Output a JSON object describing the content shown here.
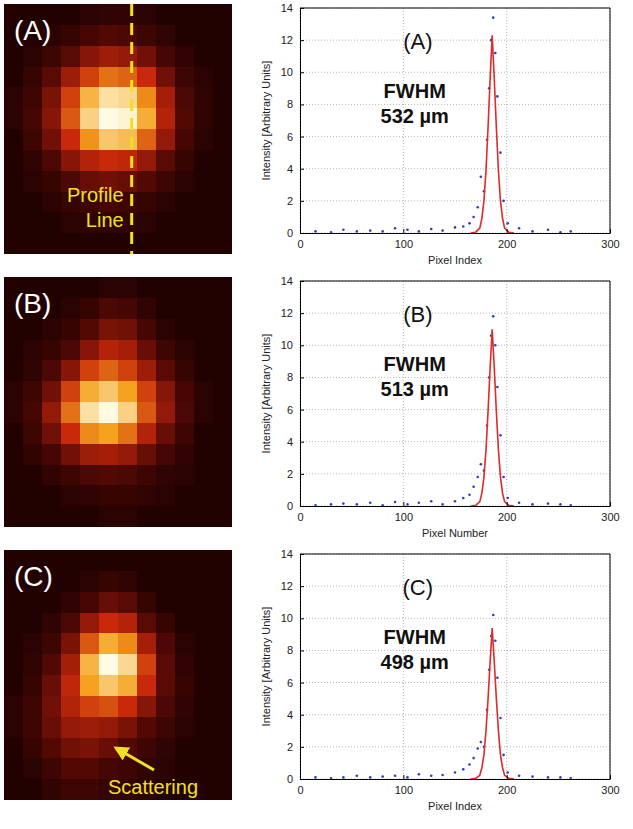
{
  "chart_data": [
    {
      "type": "heatmap",
      "panel_label": "(A)",
      "tick_labels": false,
      "zlim": [
        0,
        1
      ],
      "annotations": [
        {
          "text": "Profile Line",
          "line_style": "dashed",
          "color": "#f2e01e"
        }
      ],
      "cells": [
        [
          0.05,
          0.05,
          0.05,
          0.05,
          0.08,
          0.1,
          0.1,
          0.08,
          0.05,
          0.05,
          0.05,
          0.05
        ],
        [
          0.05,
          0.05,
          0.08,
          0.12,
          0.18,
          0.22,
          0.2,
          0.15,
          0.1,
          0.05,
          0.05,
          0.05
        ],
        [
          0.05,
          0.08,
          0.15,
          0.25,
          0.35,
          0.4,
          0.38,
          0.3,
          0.18,
          0.1,
          0.05,
          0.05
        ],
        [
          0.05,
          0.12,
          0.25,
          0.4,
          0.55,
          0.65,
          0.62,
          0.5,
          0.3,
          0.15,
          0.08,
          0.05
        ],
        [
          0.08,
          0.15,
          0.32,
          0.55,
          0.8,
          0.92,
          0.9,
          0.7,
          0.42,
          0.2,
          0.1,
          0.05
        ],
        [
          0.08,
          0.18,
          0.35,
          0.6,
          0.88,
          1.0,
          0.98,
          0.78,
          0.45,
          0.22,
          0.1,
          0.05
        ],
        [
          0.05,
          0.15,
          0.3,
          0.5,
          0.72,
          0.85,
          0.82,
          0.62,
          0.38,
          0.18,
          0.08,
          0.05
        ],
        [
          0.05,
          0.1,
          0.2,
          0.35,
          0.45,
          0.5,
          0.48,
          0.38,
          0.25,
          0.12,
          0.05,
          0.05
        ],
        [
          0.05,
          0.08,
          0.12,
          0.2,
          0.28,
          0.3,
          0.28,
          0.22,
          0.15,
          0.08,
          0.05,
          0.05
        ],
        [
          0.05,
          0.05,
          0.08,
          0.12,
          0.15,
          0.18,
          0.15,
          0.12,
          0.08,
          0.05,
          0.05,
          0.05
        ],
        [
          0.05,
          0.05,
          0.05,
          0.08,
          0.1,
          0.1,
          0.1,
          0.08,
          0.05,
          0.05,
          0.05,
          0.05
        ],
        [
          0.05,
          0.05,
          0.05,
          0.05,
          0.05,
          0.05,
          0.05,
          0.05,
          0.05,
          0.05,
          0.05,
          0.05
        ]
      ]
    },
    {
      "type": "line",
      "panel_label": "(A)",
      "x_label": "Pixel Index",
      "y_label": "Intensity [Arbitrary Units]",
      "annotations": [
        "FWHM",
        "532 µm"
      ],
      "xlim": [
        0,
        300
      ],
      "xticks": [
        0,
        100,
        200,
        300
      ],
      "ylim": [
        0,
        14
      ],
      "yticks": [
        0,
        2,
        4,
        6,
        8,
        10,
        12,
        14
      ],
      "grid": true,
      "series": [
        {
          "type": "scatter",
          "marker": "dot",
          "color": "#2b3fbf",
          "x": [
            15,
            30,
            42,
            55,
            68,
            80,
            92,
            104,
            115,
            127,
            138,
            150,
            158,
            164,
            168,
            172,
            175,
            178,
            181,
            183,
            185,
            187,
            189,
            191,
            194,
            197,
            201,
            212,
            225,
            240,
            252,
            262
          ],
          "values": [
            0.1,
            0.05,
            0.2,
            0.1,
            0.15,
            0.1,
            0.3,
            0.2,
            0.1,
            0.25,
            0.15,
            0.35,
            0.4,
            0.6,
            1.0,
            1.6,
            3.5,
            2.6,
            5.8,
            9.0,
            12.0,
            13.4,
            11.2,
            8.5,
            5.0,
            2.0,
            0.6,
            0.3,
            0.1,
            0.2,
            0.05,
            0.1
          ]
        },
        {
          "type": "line",
          "line_style": "solid",
          "color": "#e02a2a",
          "x": [
            165,
            170,
            174,
            176,
            178,
            180,
            182,
            184,
            186,
            188,
            190,
            192,
            194,
            196,
            198,
            202,
            207
          ],
          "values": [
            0,
            0.05,
            0.3,
            0.9,
            2.0,
            3.9,
            6.6,
            9.6,
            12.3,
            9.6,
            6.6,
            3.9,
            2.0,
            0.9,
            0.3,
            0.05,
            0
          ]
        }
      ]
    },
    {
      "type": "heatmap",
      "panel_label": "(B)",
      "tick_labels": false,
      "zlim": [
        0,
        1
      ],
      "cells": [
        [
          0.05,
          0.05,
          0.05,
          0.05,
          0.05,
          0.08,
          0.08,
          0.05,
          0.05,
          0.05,
          0.05,
          0.05
        ],
        [
          0.05,
          0.05,
          0.05,
          0.08,
          0.12,
          0.2,
          0.18,
          0.1,
          0.05,
          0.05,
          0.05,
          0.05
        ],
        [
          0.05,
          0.05,
          0.08,
          0.12,
          0.22,
          0.32,
          0.3,
          0.18,
          0.08,
          0.05,
          0.05,
          0.05
        ],
        [
          0.05,
          0.08,
          0.12,
          0.2,
          0.35,
          0.45,
          0.42,
          0.28,
          0.15,
          0.08,
          0.05,
          0.05
        ],
        [
          0.05,
          0.1,
          0.2,
          0.35,
          0.55,
          0.62,
          0.55,
          0.4,
          0.25,
          0.12,
          0.05,
          0.05
        ],
        [
          0.08,
          0.15,
          0.3,
          0.55,
          0.78,
          0.85,
          0.75,
          0.55,
          0.35,
          0.18,
          0.08,
          0.05
        ],
        [
          0.08,
          0.18,
          0.38,
          0.65,
          0.92,
          1.0,
          0.88,
          0.6,
          0.38,
          0.2,
          0.08,
          0.05
        ],
        [
          0.05,
          0.15,
          0.3,
          0.5,
          0.7,
          0.75,
          0.65,
          0.45,
          0.28,
          0.15,
          0.05,
          0.05
        ],
        [
          0.05,
          0.1,
          0.18,
          0.3,
          0.4,
          0.42,
          0.38,
          0.28,
          0.18,
          0.1,
          0.05,
          0.05
        ],
        [
          0.05,
          0.05,
          0.1,
          0.15,
          0.2,
          0.22,
          0.2,
          0.15,
          0.1,
          0.08,
          0.05,
          0.05
        ],
        [
          0.05,
          0.05,
          0.05,
          0.08,
          0.1,
          0.12,
          0.12,
          0.1,
          0.08,
          0.05,
          0.05,
          0.05
        ],
        [
          0.05,
          0.05,
          0.05,
          0.05,
          0.05,
          0.08,
          0.08,
          0.05,
          0.05,
          0.05,
          0.05,
          0.05
        ]
      ]
    },
    {
      "type": "line",
      "panel_label": "(B)",
      "x_label": "Pixel Number",
      "y_label": "Intensity [Arbitrary Units]",
      "annotations": [
        "FWHM",
        "513 µm"
      ],
      "xlim": [
        0,
        300
      ],
      "xticks": [
        0,
        100,
        200,
        300
      ],
      "ylim": [
        0,
        14
      ],
      "yticks": [
        0,
        2,
        4,
        6,
        8,
        10,
        12,
        14
      ],
      "grid": true,
      "series": [
        {
          "type": "scatter",
          "marker": "dot",
          "color": "#2b3fbf",
          "x": [
            15,
            30,
            42,
            55,
            68,
            80,
            92,
            104,
            115,
            127,
            138,
            150,
            158,
            164,
            168,
            172,
            175,
            178,
            181,
            183,
            185,
            187,
            189,
            191,
            194,
            197,
            201,
            212,
            225,
            240,
            252,
            262
          ],
          "values": [
            0.05,
            0.1,
            0.15,
            0.1,
            0.2,
            0.05,
            0.25,
            0.1,
            0.2,
            0.3,
            0.1,
            0.3,
            0.5,
            0.7,
            1.2,
            1.8,
            2.6,
            2.2,
            5.0,
            8.0,
            10.6,
            11.8,
            10.0,
            7.4,
            4.4,
            1.8,
            0.5,
            0.2,
            0.1,
            0.15,
            0.1,
            0.05
          ]
        },
        {
          "type": "line",
          "line_style": "solid",
          "color": "#e02a2a",
          "x": [
            165,
            170,
            174,
            176,
            178,
            180,
            182,
            184,
            186,
            188,
            190,
            192,
            194,
            196,
            198,
            202,
            207
          ],
          "values": [
            0,
            0.04,
            0.27,
            0.8,
            1.8,
            3.5,
            5.9,
            8.6,
            11.0,
            8.6,
            5.9,
            3.5,
            1.8,
            0.8,
            0.27,
            0.04,
            0
          ]
        }
      ]
    },
    {
      "type": "heatmap",
      "panel_label": "(C)",
      "tick_labels": false,
      "zlim": [
        0,
        1
      ],
      "annotations": [
        {
          "text": "Scattering",
          "marker": "arrow",
          "color": "#f2e01e"
        }
      ],
      "cells": [
        [
          0.05,
          0.05,
          0.05,
          0.05,
          0.05,
          0.05,
          0.05,
          0.05,
          0.05,
          0.05,
          0.05,
          0.05
        ],
        [
          0.05,
          0.05,
          0.05,
          0.05,
          0.08,
          0.12,
          0.1,
          0.05,
          0.05,
          0.05,
          0.05,
          0.05
        ],
        [
          0.05,
          0.05,
          0.05,
          0.1,
          0.18,
          0.28,
          0.25,
          0.12,
          0.05,
          0.05,
          0.05,
          0.05
        ],
        [
          0.05,
          0.05,
          0.1,
          0.2,
          0.38,
          0.5,
          0.45,
          0.25,
          0.12,
          0.05,
          0.05,
          0.05
        ],
        [
          0.05,
          0.08,
          0.15,
          0.32,
          0.6,
          0.78,
          0.7,
          0.42,
          0.2,
          0.08,
          0.05,
          0.05
        ],
        [
          0.05,
          0.1,
          0.22,
          0.42,
          0.8,
          1.0,
          0.9,
          0.55,
          0.25,
          0.1,
          0.05,
          0.05
        ],
        [
          0.05,
          0.12,
          0.28,
          0.48,
          0.75,
          0.85,
          0.78,
          0.5,
          0.25,
          0.12,
          0.05,
          0.05
        ],
        [
          0.08,
          0.15,
          0.3,
          0.45,
          0.55,
          0.58,
          0.5,
          0.35,
          0.2,
          0.1,
          0.05,
          0.05
        ],
        [
          0.08,
          0.15,
          0.28,
          0.38,
          0.4,
          0.38,
          0.32,
          0.22,
          0.15,
          0.08,
          0.05,
          0.05
        ],
        [
          0.05,
          0.12,
          0.22,
          0.3,
          0.32,
          0.28,
          0.22,
          0.15,
          0.1,
          0.05,
          0.05,
          0.05
        ],
        [
          0.05,
          0.08,
          0.15,
          0.22,
          0.22,
          0.18,
          0.15,
          0.1,
          0.08,
          0.05,
          0.05,
          0.05
        ],
        [
          0.05,
          0.05,
          0.1,
          0.15,
          0.15,
          0.12,
          0.1,
          0.08,
          0.05,
          0.05,
          0.05,
          0.05
        ]
      ]
    },
    {
      "type": "line",
      "panel_label": "(C)",
      "x_label": "Pixel Index",
      "y_label": "Intensity [Arbitrary Units]",
      "annotations": [
        "FWHM",
        "498 µm"
      ],
      "xlim": [
        0,
        300
      ],
      "xticks": [
        0,
        100,
        200,
        300
      ],
      "ylim": [
        0,
        14
      ],
      "yticks": [
        0,
        2,
        4,
        6,
        8,
        10,
        12,
        14
      ],
      "grid": true,
      "series": [
        {
          "type": "scatter",
          "marker": "dot",
          "color": "#2b3fbf",
          "x": [
            15,
            30,
            42,
            55,
            68,
            80,
            92,
            104,
            115,
            127,
            138,
            150,
            158,
            164,
            168,
            172,
            175,
            178,
            181,
            183,
            185,
            187,
            189,
            191,
            194,
            197,
            201,
            212,
            225,
            240,
            252,
            262
          ],
          "values": [
            0.1,
            0.05,
            0.1,
            0.2,
            0.1,
            0.15,
            0.2,
            0.1,
            0.3,
            0.2,
            0.25,
            0.4,
            0.6,
            0.9,
            1.3,
            1.9,
            2.3,
            2.0,
            4.3,
            6.8,
            8.9,
            10.2,
            8.6,
            6.3,
            3.8,
            1.5,
            0.4,
            0.2,
            0.15,
            0.1,
            0.1,
            0.05
          ]
        },
        {
          "type": "line",
          "line_style": "solid",
          "color": "#e02a2a",
          "x": [
            165,
            170,
            174,
            176,
            178,
            180,
            182,
            184,
            186,
            188,
            190,
            192,
            194,
            196,
            198,
            202,
            207
          ],
          "values": [
            0,
            0.04,
            0.23,
            0.7,
            1.5,
            3.0,
            5.0,
            7.3,
            9.4,
            7.3,
            5.0,
            3.0,
            1.5,
            0.7,
            0.23,
            0.04,
            0
          ]
        }
      ]
    }
  ]
}
